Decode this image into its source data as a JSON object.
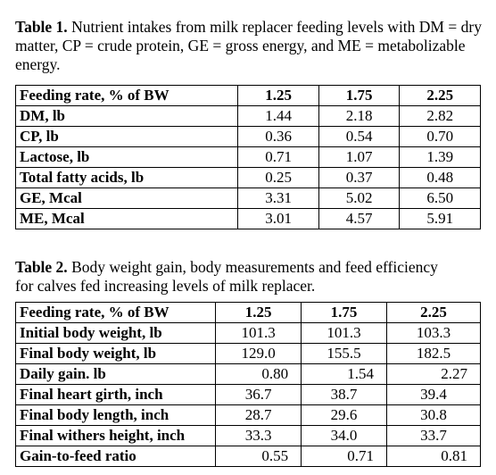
{
  "table1": {
    "caption_label": "Table 1.",
    "caption_text": "Nutrient intakes from milk replacer feeding levels with DM = dry matter, CP = crude protein, GE = gross energy, and ME = metabolizable energy.",
    "header": [
      "Feeding rate, % of BW",
      "1.25",
      "1.75",
      "2.25"
    ],
    "rows": [
      [
        "DM, lb",
        "1.44",
        "2.18",
        "2.82"
      ],
      [
        "CP, lb",
        "0.36",
        "0.54",
        "0.70"
      ],
      [
        "Lactose, lb",
        "0.71",
        "1.07",
        "1.39"
      ],
      [
        "Total fatty acids, lb",
        "0.25",
        "0.37",
        "0.48"
      ],
      [
        "GE, Mcal",
        "3.31",
        "5.02",
        "6.50"
      ],
      [
        "ME, Mcal",
        "3.01",
        "4.57",
        "5.91"
      ]
    ]
  },
  "table2": {
    "caption_label": "Table 2.",
    "caption_text": "Body weight gain, body measurements and feed efficiency for calves fed increasing levels of milk replacer.",
    "header": [
      "Feeding rate, % of BW",
      "1.25",
      "1.75",
      "2.25"
    ],
    "rows": [
      [
        "Initial body weight, lb",
        "101.3",
        "101.3",
        "103.3"
      ],
      [
        "Final body weight, lb",
        "129.0",
        "155.5",
        "182.5"
      ],
      [
        "Daily gain. lb",
        "0.80",
        "1.54",
        "2.27"
      ],
      [
        "Final heart girth, inch",
        "36.7",
        "38.7",
        "39.4"
      ],
      [
        "Final body length, inch",
        "28.7",
        "29.6",
        "30.8"
      ],
      [
        "Final withers height, inch",
        "33.3",
        "34.0",
        "33.7"
      ],
      [
        "Gain-to-feed ratio",
        "0.55",
        "0.71",
        "0.81"
      ]
    ]
  }
}
